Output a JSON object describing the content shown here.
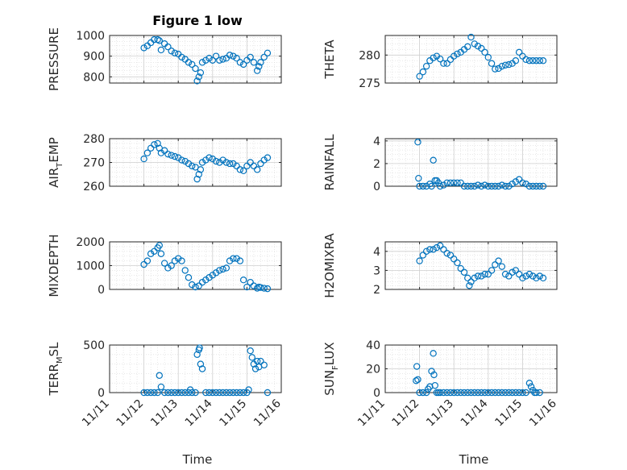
{
  "figure": {
    "title": "Figure 1 low",
    "marker_color": "#0072BD",
    "axis_color": "#262626",
    "grid_color": "#d9d9d9"
  },
  "x_tick_labels": [
    "11/11",
    "11/12",
    "11/13",
    "11/14",
    "11/15",
    "11/16"
  ],
  "xlabel": "Time",
  "chart_data": [
    {
      "type": "scatter",
      "ylabel_main": "PRESSURE",
      "ylabel_sub": "",
      "xlim": [
        11.0,
        16.0
      ],
      "ylim": [
        770,
        1000
      ],
      "yticks": [
        800,
        900,
        1000
      ],
      "grid": true,
      "minor_grid": true,
      "x": [
        12.0,
        12.1,
        12.2,
        12.3,
        12.4,
        12.45,
        12.5,
        12.6,
        12.7,
        12.8,
        12.9,
        13.0,
        13.1,
        13.2,
        13.3,
        13.4,
        13.5,
        13.55,
        13.6,
        13.65,
        13.7,
        13.8,
        13.9,
        14.0,
        14.1,
        14.2,
        14.3,
        14.4,
        14.5,
        14.6,
        14.7,
        14.8,
        14.9,
        15.0,
        15.1,
        15.2,
        15.3,
        15.35,
        15.4,
        15.5,
        15.6
      ],
      "y": [
        940,
        950,
        965,
        980,
        980,
        975,
        930,
        960,
        945,
        925,
        915,
        910,
        895,
        885,
        870,
        860,
        840,
        780,
        800,
        820,
        870,
        880,
        890,
        880,
        900,
        880,
        885,
        890,
        905,
        900,
        890,
        870,
        860,
        880,
        895,
        870,
        830,
        850,
        870,
        895,
        915
      ]
    },
    {
      "type": "scatter",
      "ylabel_main": "THETA",
      "ylabel_sub": "",
      "xlim": [
        11.0,
        16.0
      ],
      "ylim": [
        275,
        283.5
      ],
      "yticks": [
        275,
        280
      ],
      "grid": true,
      "minor_grid": true,
      "x": [
        12.0,
        12.1,
        12.2,
        12.3,
        12.4,
        12.5,
        12.6,
        12.7,
        12.8,
        12.9,
        13.0,
        13.1,
        13.2,
        13.3,
        13.4,
        13.5,
        13.6,
        13.7,
        13.8,
        13.9,
        14.0,
        14.1,
        14.2,
        14.3,
        14.4,
        14.5,
        14.6,
        14.7,
        14.8,
        14.9,
        15.0,
        15.1,
        15.2,
        15.3,
        15.4,
        15.5,
        15.6
      ],
      "y": [
        276.2,
        277.0,
        278.0,
        279.0,
        279.5,
        279.8,
        279.3,
        278.5,
        278.5,
        279.2,
        279.8,
        280.2,
        280.5,
        281.0,
        281.5,
        283.2,
        282.0,
        281.6,
        281.2,
        280.5,
        279.6,
        278.5,
        277.5,
        277.6,
        278.0,
        278.2,
        278.3,
        278.5,
        279.0,
        280.5,
        279.8,
        279.2,
        279.0,
        279.0,
        279.0,
        279.0,
        279.0
      ]
    },
    {
      "type": "scatter",
      "ylabel_main": "AIR",
      "ylabel_sub": "T",
      "ylabel_rest": "EMP",
      "xlim": [
        11.0,
        16.0
      ],
      "ylim": [
        260,
        280
      ],
      "yticks": [
        260,
        270,
        280
      ],
      "grid": true,
      "minor_grid": true,
      "x": [
        12.0,
        12.1,
        12.2,
        12.3,
        12.4,
        12.45,
        12.5,
        12.6,
        12.7,
        12.8,
        12.9,
        13.0,
        13.1,
        13.2,
        13.3,
        13.4,
        13.5,
        13.55,
        13.6,
        13.65,
        13.7,
        13.8,
        13.9,
        14.0,
        14.1,
        14.2,
        14.3,
        14.4,
        14.5,
        14.6,
        14.7,
        14.8,
        14.9,
        15.0,
        15.1,
        15.2,
        15.3,
        15.4,
        15.5,
        15.6
      ],
      "y": [
        271.5,
        274,
        276,
        277.5,
        278,
        276,
        274,
        275,
        273.5,
        273,
        272.5,
        272,
        271,
        270.5,
        269.5,
        268.5,
        268,
        263,
        265,
        267,
        270,
        271,
        272,
        271.5,
        270.5,
        270,
        271,
        270,
        269.5,
        269.5,
        268.5,
        267,
        266.5,
        268.5,
        270,
        268.5,
        267,
        269.5,
        271,
        272
      ]
    },
    {
      "type": "scatter",
      "ylabel_main": "RAINFALL",
      "ylabel_sub": "",
      "xlim": [
        11.0,
        16.0
      ],
      "ylim": [
        0,
        4.2
      ],
      "yticks": [
        0,
        2,
        4
      ],
      "grid": true,
      "minor_grid": true,
      "x": [
        11.95,
        11.97,
        12.0,
        12.1,
        12.2,
        12.3,
        12.35,
        12.4,
        12.45,
        12.5,
        12.55,
        12.6,
        12.7,
        12.8,
        12.9,
        13.0,
        13.1,
        13.2,
        13.3,
        13.4,
        13.5,
        13.6,
        13.7,
        13.8,
        13.9,
        14.0,
        14.1,
        14.2,
        14.3,
        14.4,
        14.5,
        14.6,
        14.7,
        14.8,
        14.9,
        15.0,
        15.1,
        15.2,
        15.3,
        15.4,
        15.5,
        15.6
      ],
      "y": [
        3.9,
        0.7,
        0,
        0,
        0,
        0.2,
        0,
        2.3,
        0.5,
        0.5,
        0.3,
        0,
        0.1,
        0.3,
        0.3,
        0.3,
        0.3,
        0.3,
        0,
        0,
        0,
        0,
        0.1,
        0,
        0.1,
        0,
        0,
        0,
        0,
        0.1,
        0,
        0,
        0.2,
        0.4,
        0.6,
        0.3,
        0.2,
        0,
        0,
        0,
        0,
        0
      ]
    },
    {
      "type": "scatter",
      "ylabel_main": "MIXDEPTH",
      "ylabel_sub": "",
      "xlim": [
        11.0,
        16.0
      ],
      "ylim": [
        0,
        2000
      ],
      "yticks": [
        0,
        1000,
        2000
      ],
      "grid": true,
      "minor_grid": true,
      "x": [
        12.0,
        12.1,
        12.2,
        12.3,
        12.4,
        12.45,
        12.5,
        12.6,
        12.7,
        12.8,
        12.9,
        13.0,
        13.1,
        13.2,
        13.3,
        13.4,
        13.5,
        13.6,
        13.7,
        13.8,
        13.9,
        14.0,
        14.1,
        14.2,
        14.3,
        14.4,
        14.5,
        14.6,
        14.7,
        14.8,
        14.9,
        15.0,
        15.1,
        15.2,
        15.3,
        15.35,
        15.4,
        15.5,
        15.6
      ],
      "y": [
        1050,
        1200,
        1500,
        1600,
        1750,
        1850,
        1500,
        1100,
        900,
        1000,
        1200,
        1300,
        1200,
        800,
        500,
        200,
        100,
        150,
        300,
        400,
        500,
        600,
        700,
        800,
        850,
        900,
        1200,
        1300,
        1300,
        1200,
        400,
        100,
        300,
        150,
        50,
        100,
        80,
        50,
        30
      ]
    },
    {
      "type": "scatter",
      "ylabel_main": "H2OMIXRA",
      "ylabel_sub": "",
      "xlim": [
        11.0,
        16.0
      ],
      "ylim": [
        2,
        4.5
      ],
      "yticks": [
        2,
        3,
        4
      ],
      "grid": true,
      "minor_grid": true,
      "x": [
        12.0,
        12.1,
        12.2,
        12.3,
        12.4,
        12.5,
        12.6,
        12.7,
        12.8,
        12.9,
        13.0,
        13.1,
        13.2,
        13.3,
        13.4,
        13.45,
        13.5,
        13.6,
        13.7,
        13.8,
        13.9,
        14.0,
        14.1,
        14.2,
        14.3,
        14.4,
        14.5,
        14.6,
        14.7,
        14.8,
        14.9,
        15.0,
        15.1,
        15.2,
        15.3,
        15.4,
        15.5,
        15.6
      ],
      "y": [
        3.5,
        3.8,
        4.0,
        4.1,
        4.1,
        4.2,
        4.3,
        4.1,
        3.9,
        3.8,
        3.6,
        3.4,
        3.1,
        2.9,
        2.6,
        2.2,
        2.4,
        2.6,
        2.7,
        2.7,
        2.8,
        2.8,
        3.0,
        3.3,
        3.5,
        3.2,
        2.8,
        2.7,
        2.9,
        3.0,
        2.8,
        2.6,
        2.7,
        2.8,
        2.7,
        2.6,
        2.7,
        2.6
      ]
    },
    {
      "type": "scatter",
      "ylabel_main": "TERR",
      "ylabel_sub": "M",
      "ylabel_rest": "SL",
      "xlim": [
        11.0,
        16.0
      ],
      "ylim": [
        0,
        500
      ],
      "yticks": [
        0,
        500
      ],
      "grid": true,
      "minor_grid": true,
      "x": [
        12.0,
        12.1,
        12.2,
        12.3,
        12.4,
        12.45,
        12.5,
        12.6,
        12.7,
        12.8,
        12.9,
        13.0,
        13.1,
        13.2,
        13.3,
        13.35,
        13.4,
        13.5,
        13.55,
        13.6,
        13.62,
        13.65,
        13.7,
        13.8,
        13.9,
        14.0,
        14.1,
        14.2,
        14.3,
        14.4,
        14.5,
        14.6,
        14.7,
        14.8,
        14.9,
        15.0,
        15.05,
        15.1,
        15.15,
        15.2,
        15.25,
        15.3,
        15.35,
        15.4,
        15.5,
        15.6
      ],
      "y": [
        0,
        0,
        0,
        0,
        0,
        180,
        60,
        0,
        0,
        0,
        0,
        0,
        0,
        0,
        0,
        30,
        0,
        0,
        400,
        450,
        470,
        300,
        250,
        0,
        0,
        0,
        0,
        0,
        0,
        0,
        0,
        0,
        0,
        0,
        0,
        0,
        30,
        440,
        370,
        300,
        250,
        330,
        270,
        330,
        290,
        0
      ]
    },
    {
      "type": "scatter",
      "ylabel_main": "SUN",
      "ylabel_sub": "F",
      "ylabel_rest": "LUX",
      "xlim": [
        11.0,
        16.0
      ],
      "ylim": [
        0,
        40
      ],
      "yticks": [
        0,
        20,
        40
      ],
      "grid": true,
      "minor_grid": true,
      "x": [
        11.9,
        11.92,
        11.95,
        12.0,
        12.1,
        12.2,
        12.25,
        12.3,
        12.35,
        12.4,
        12.42,
        12.45,
        12.5,
        12.55,
        12.6,
        12.7,
        12.8,
        12.9,
        13.0,
        13.1,
        13.2,
        13.3,
        13.4,
        13.5,
        13.6,
        13.7,
        13.8,
        13.9,
        14.0,
        14.1,
        14.2,
        14.3,
        14.4,
        14.5,
        14.6,
        14.7,
        14.8,
        14.9,
        15.0,
        15.1,
        15.2,
        15.25,
        15.3,
        15.35,
        15.4,
        15.5
      ],
      "y": [
        10,
        22,
        11,
        0,
        0,
        0,
        3,
        5,
        18,
        33,
        15,
        6,
        0,
        0,
        0,
        0,
        0,
        0,
        0,
        0,
        0,
        0,
        0,
        0,
        0,
        0,
        0,
        0,
        0,
        0,
        0,
        0,
        0,
        0,
        0,
        0,
        0,
        0,
        0,
        0,
        8,
        5,
        2,
        0,
        0,
        0
      ]
    }
  ]
}
